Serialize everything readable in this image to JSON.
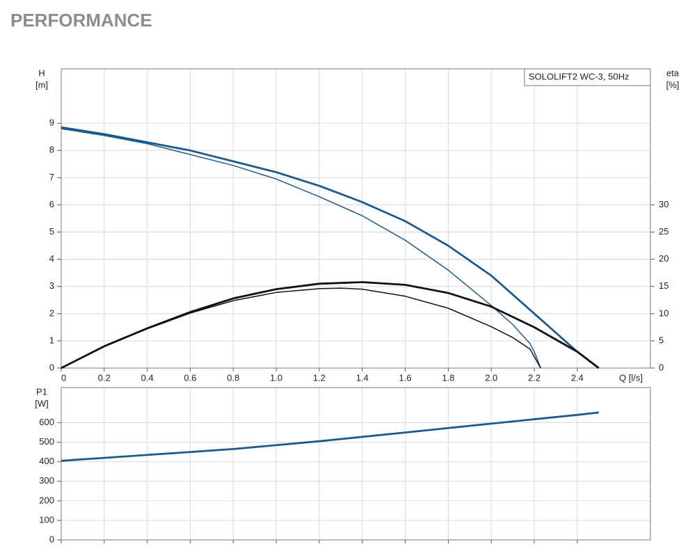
{
  "title": "PERFORMANCE",
  "chart_data": [
    {
      "type": "line",
      "annotation": "SOLOLIFT2 WC-3, 50Hz",
      "xlabel": "Q [l/s]",
      "ylabel": [
        "H",
        "[m]"
      ],
      "y2label": [
        "eta",
        "[%]"
      ],
      "xlim": [
        0,
        2.74
      ],
      "xticks": [
        0,
        0.2,
        0.4,
        0.6,
        0.8,
        {
          "value": 1,
          "label": "1.0"
        },
        1.2,
        1.4,
        1.6,
        1.8,
        {
          "value": 2,
          "label": "2.0"
        },
        2.2,
        2.4
      ],
      "ylim": [
        0,
        11
      ],
      "yticks": [
        0,
        1,
        2,
        3,
        4,
        5,
        6,
        7,
        8,
        9
      ],
      "y2lim": [
        0,
        55
      ],
      "y2ticks": [
        0,
        5,
        10,
        15,
        20,
        25,
        30
      ],
      "grid": true,
      "series": [
        {
          "color": "#1d5a8c",
          "axis": "y",
          "x": [
            0,
            0.2,
            0.4,
            0.6,
            0.8,
            1.0,
            1.2,
            1.4,
            1.6,
            1.8,
            2.0,
            2.2,
            2.4,
            2.5
          ],
          "values": [
            8.85,
            8.6,
            8.3,
            8.0,
            7.6,
            7.2,
            6.7,
            6.1,
            5.4,
            4.5,
            3.4,
            2.0,
            0.6,
            0
          ]
        },
        {
          "color": "#1d5a8c",
          "axis": "y",
          "x": [
            0,
            0.2,
            0.4,
            0.6,
            0.8,
            1.0,
            1.2,
            1.4,
            1.6,
            1.8,
            2.0,
            2.1,
            2.18,
            2.2,
            2.23
          ],
          "values": [
            8.8,
            8.55,
            8.25,
            7.85,
            7.45,
            6.95,
            6.3,
            5.6,
            4.7,
            3.6,
            2.3,
            1.6,
            0.9,
            0.6,
            0
          ]
        },
        {
          "color": "#111111",
          "axis": "y2",
          "x": [
            0,
            0.2,
            0.4,
            0.6,
            0.8,
            1.0,
            1.2,
            1.4,
            1.6,
            1.8,
            2.0,
            2.2,
            2.4,
            2.5
          ],
          "values": [
            0,
            4,
            7.3,
            10.3,
            12.8,
            14.5,
            15.5,
            15.8,
            15.3,
            13.8,
            11.3,
            7.5,
            3,
            0
          ]
        },
        {
          "color": "#111111",
          "axis": "y2",
          "x": [
            0,
            0.2,
            0.4,
            0.6,
            0.8,
            1.0,
            1.2,
            1.3,
            1.4,
            1.6,
            1.8,
            2.0,
            2.1,
            2.18,
            2.23
          ],
          "values": [
            0,
            4,
            7.2,
            10.1,
            12.4,
            13.9,
            14.6,
            14.7,
            14.5,
            13.2,
            11.0,
            7.6,
            5.6,
            3.5,
            0
          ]
        }
      ]
    },
    {
      "type": "line",
      "ylabel": [
        "P1",
        "[W]"
      ],
      "ylim": [
        0,
        780
      ],
      "yticks": [
        0,
        100,
        200,
        300,
        400,
        500,
        600
      ],
      "grid": true,
      "series": [
        {
          "color": "#1d5a8c",
          "axis": "y",
          "x": [
            0,
            0.4,
            0.8,
            1.2,
            1.6,
            2.0,
            2.4,
            2.5
          ],
          "values": [
            405,
            435,
            465,
            505,
            550,
            595,
            640,
            652
          ]
        }
      ]
    }
  ]
}
